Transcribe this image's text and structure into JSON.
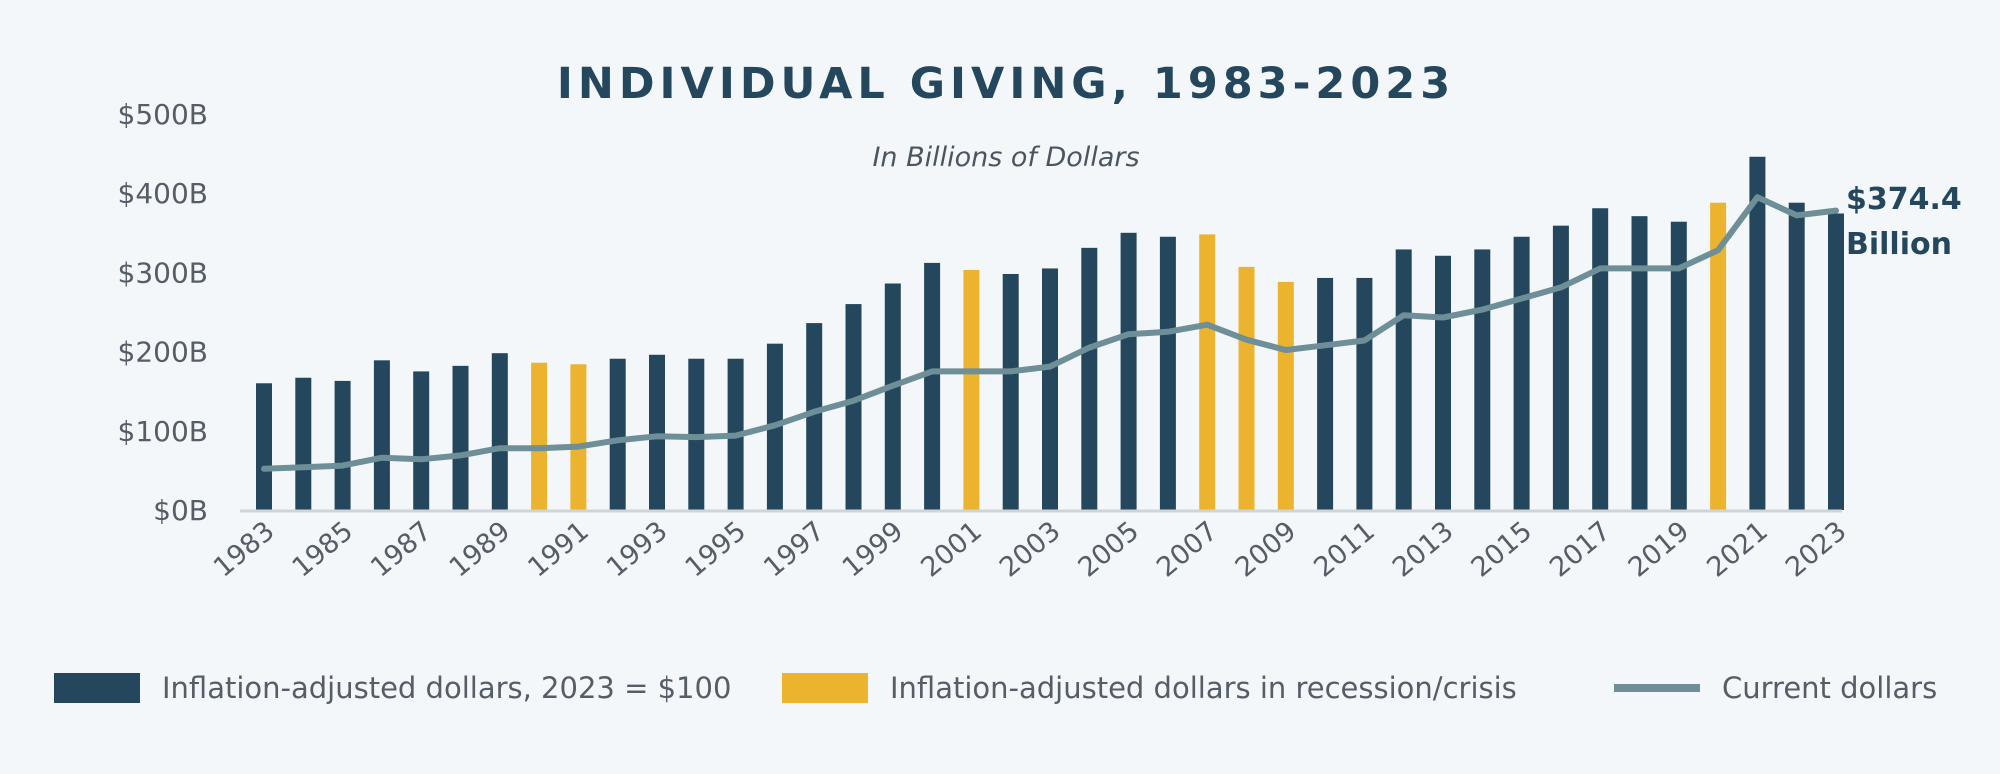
{
  "chart_data": {
    "type": "bar",
    "title": "INDIVIDUAL GIVING, 1983-2023",
    "subtitle": "In Billions of Dollars",
    "y_ticks": [
      "$0B",
      "$100B",
      "$200B",
      "$300B",
      "$400B",
      "$500B"
    ],
    "ylim": [
      0,
      500
    ],
    "x_tick_labels": [
      "1983",
      "1985",
      "1987",
      "1989",
      "1991",
      "1993",
      "1995",
      "1997",
      "1999",
      "2001",
      "2003",
      "2005",
      "2007",
      "2009",
      "2011",
      "2013",
      "2015",
      "2017",
      "2019",
      "2021",
      "2023"
    ],
    "categories": [
      1983,
      1984,
      1985,
      1986,
      1987,
      1988,
      1989,
      1990,
      1991,
      1992,
      1993,
      1994,
      1995,
      1996,
      1997,
      1998,
      1999,
      2000,
      2001,
      2002,
      2003,
      2004,
      2005,
      2006,
      2007,
      2008,
      2009,
      2010,
      2011,
      2012,
      2013,
      2014,
      2015,
      2016,
      2017,
      2018,
      2019,
      2020,
      2021,
      2022,
      2023
    ],
    "series": [
      {
        "name": "Inflation-adjusted dollars, 2023 = $100",
        "type": "bar",
        "values": [
          160,
          167,
          163,
          189,
          175,
          182,
          198,
          186,
          184,
          191,
          196,
          191,
          191,
          210,
          236,
          260,
          286,
          312,
          303,
          298,
          305,
          331,
          350,
          345,
          348,
          307,
          288,
          293,
          293,
          329,
          321,
          329,
          345,
          359,
          381,
          371,
          364,
          388,
          446,
          388,
          374.4
        ],
        "color": "#24475d"
      },
      {
        "name": "Inflation-adjusted dollars in recession/crisis",
        "type": "bar",
        "years": [
          1990,
          1991,
          2001,
          2007,
          2008,
          2009,
          2020
        ],
        "color": "#ecb32e"
      },
      {
        "name": "Current dollars",
        "type": "line",
        "values": [
          52,
          54,
          56,
          66,
          64,
          69,
          78,
          78,
          80,
          88,
          93,
          92,
          94,
          107,
          124,
          138,
          157,
          175,
          175,
          175,
          181,
          205,
          222,
          225,
          234,
          215,
          202,
          208,
          214,
          246,
          243,
          253,
          267,
          281,
          305,
          305,
          305,
          328,
          395,
          372,
          378
        ],
        "color": "#6e8f98"
      }
    ],
    "annotation": {
      "line1": "$374.4",
      "line2": "Billion"
    },
    "grid": false,
    "legend_position": "bottom"
  }
}
